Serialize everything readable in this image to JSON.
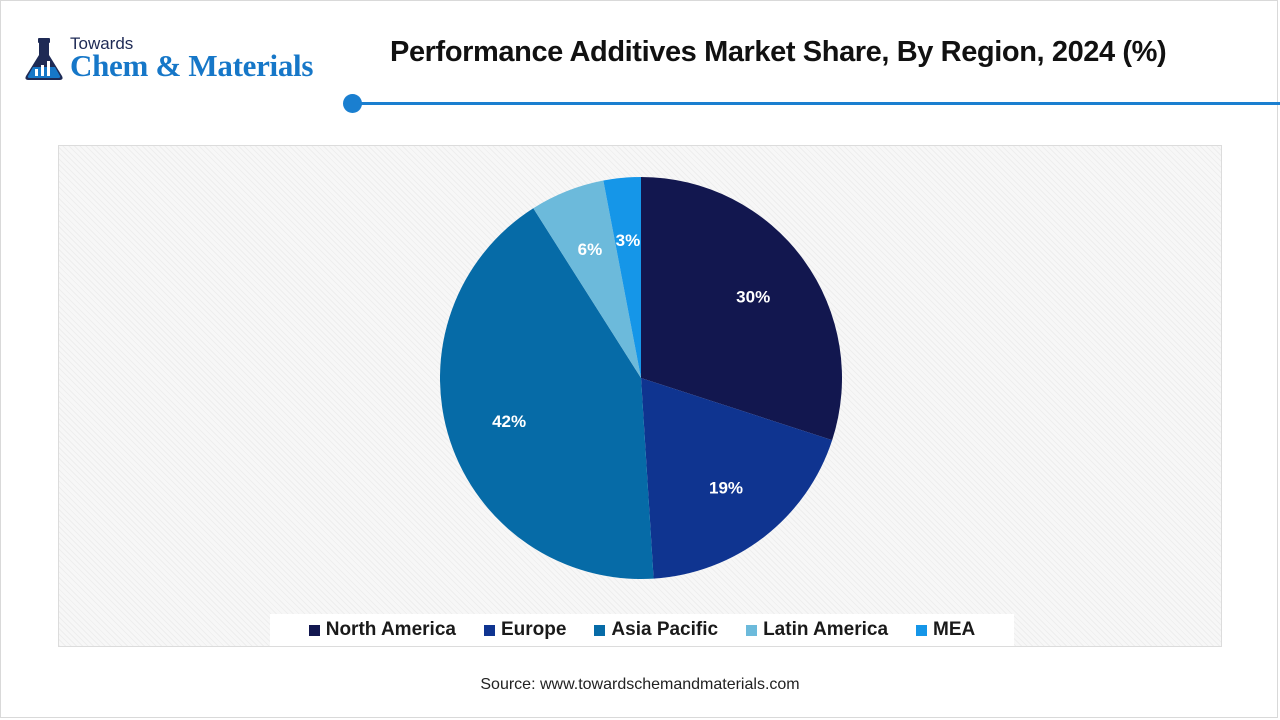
{
  "header": {
    "logo_small": "Towards",
    "logo_big": "Chem & Materials",
    "title": "Performance Additives Market Share, By Region, 2024 (%)"
  },
  "colors": {
    "accent": "#1a7fd0",
    "logo_blue": "#1677c8"
  },
  "icons": {
    "logo": "flask-logo-icon"
  },
  "chart_data": {
    "type": "pie",
    "title": "Performance Additives Market Share, By Region, 2024 (%)",
    "categories": [
      "North America",
      "Europe",
      "Asia Pacific",
      "Latin America",
      "MEA"
    ],
    "values": [
      30,
      19,
      42,
      6,
      3
    ],
    "data_labels": [
      "30%",
      "19%",
      "42%",
      "6%",
      "3%"
    ],
    "colors": [
      "#12174f",
      "#0f3490",
      "#066ba7",
      "#6cbadb",
      "#1596e8"
    ],
    "start_angle_deg": 0,
    "direction": "clockwise",
    "legend": {
      "placement": "bottom",
      "entries": [
        "North America",
        "Europe",
        "Asia Pacific",
        "Latin America",
        "MEA"
      ]
    }
  },
  "footer": {
    "source": "Source: www.towardschemandmaterials.com"
  }
}
